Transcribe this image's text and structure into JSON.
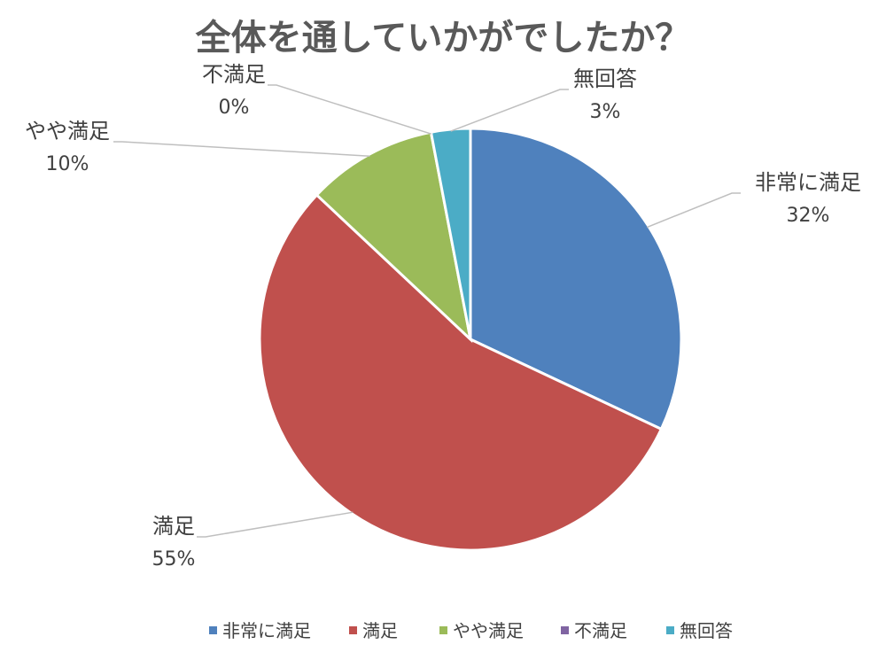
{
  "chart_data": {
    "type": "pie",
    "title": "全体を通していかがでしたか？",
    "categories": [
      "非常に満足",
      "満足",
      "やや満足",
      "不満足",
      "無回答"
    ],
    "values": [
      32,
      55,
      10,
      0,
      3
    ],
    "percent_labels": [
      "32%",
      "55%",
      "10%",
      "0%",
      "3%"
    ],
    "colors": [
      "#4F81BD",
      "#C0504D",
      "#9BBB59",
      "#8064A2",
      "#4BACC6"
    ],
    "legend_position": "bottom",
    "data_labels": "outside with leader lines"
  }
}
